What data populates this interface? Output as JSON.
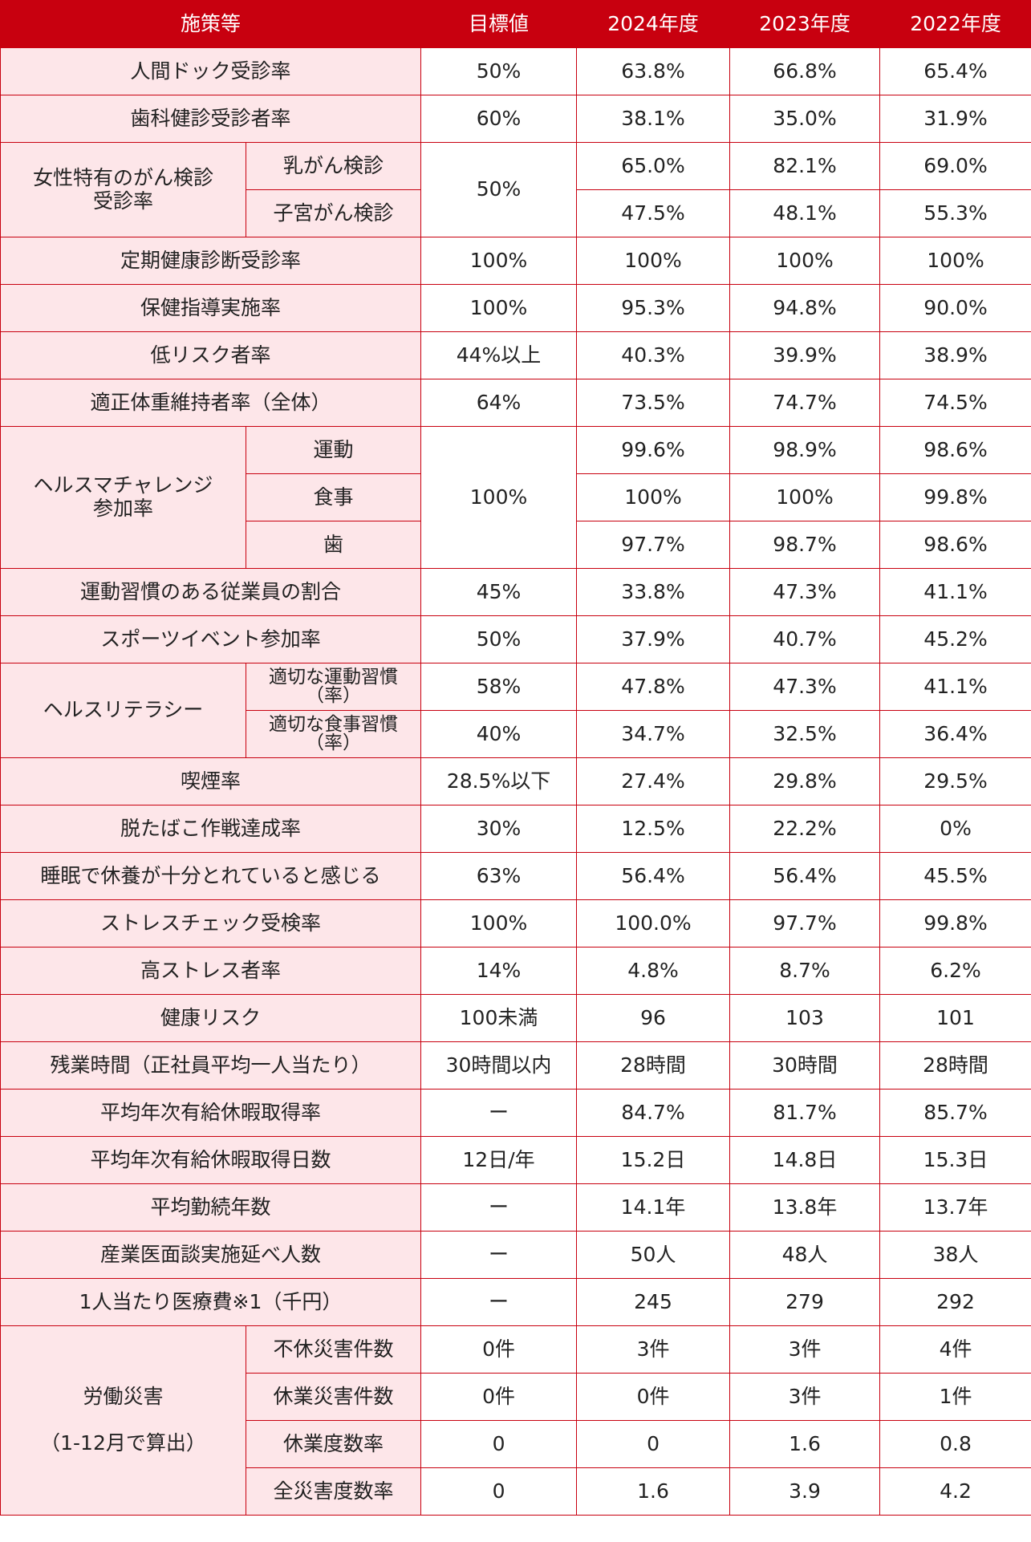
{
  "table": {
    "header": [
      "施策等",
      "目標値",
      "2024年度",
      "2023年度",
      "2022年度"
    ],
    "rows": [
      [
        "人間ドック受診率",
        "50%",
        "63.8%",
        "66.8%",
        "65.4%"
      ],
      [
        "歯科健診受診者率",
        "60%",
        "38.1%",
        "35.0%",
        "31.9%"
      ],
      [
        "女性特有のがん検診\n受診率",
        "乳がん検診",
        "50%",
        "65.0%",
        "82.1%",
        "69.0%"
      ],
      [
        "子宮がん検診",
        "47.5%",
        "48.1%",
        "55.3%"
      ],
      [
        "定期健康診断受診率",
        "100%",
        "100%",
        "100%",
        "100%"
      ],
      [
        "保健指導実施率",
        "100%",
        "95.3%",
        "94.8%",
        "90.0%"
      ],
      [
        "低リスク者率",
        "44%以上",
        "40.3%",
        "39.9%",
        "38.9%"
      ],
      [
        "適正体重維持者率（全体）",
        "64%",
        "73.5%",
        "74.7%",
        "74.5%"
      ],
      [
        "ヘルスマチャレンジ\n参加率",
        "運動",
        "100%",
        "99.6%",
        "98.9%",
        "98.6%"
      ],
      [
        "食事",
        "100%",
        "100%",
        "99.8%"
      ],
      [
        "歯",
        "97.7%",
        "98.7%",
        "98.6%"
      ],
      [
        "運動習慣のある従業員の割合",
        "45%",
        "33.8%",
        "47.3%",
        "41.1%"
      ],
      [
        "スポーツイベント参加率",
        "50%",
        "37.9%",
        "40.7%",
        "45.2%"
      ],
      [
        "ヘルスリテラシー",
        "適切な運動習慣（率）",
        "58%",
        "47.8%",
        "47.3%",
        "41.1%"
      ],
      [
        "適切な食事習慣（率）",
        "40%",
        "34.7%",
        "32.5%",
        "36.4%"
      ],
      [
        "喫煙率",
        "28.5%以下",
        "27.4%",
        "29.8%",
        "29.5%"
      ],
      [
        "脱たばこ作戦達成率",
        "30%",
        "12.5%",
        "22.2%",
        "0%"
      ],
      [
        "睡眠で休養が十分とれていると感じる",
        "63%",
        "56.4%",
        "56.4%",
        "45.5%"
      ],
      [
        "ストレスチェック受検率",
        "100%",
        "100.0%",
        "97.7%",
        "99.8%"
      ],
      [
        "高ストレス者率",
        "14%",
        "4.8%",
        "8.7%",
        "6.2%"
      ],
      [
        "健康リスク",
        "100未満",
        "96",
        "103",
        "101"
      ],
      [
        "残業時間（正社員平均一人当たり）",
        "30時間以内",
        "28時間",
        "30時間",
        "28時間"
      ],
      [
        "平均年次有給休暇取得率",
        "ー",
        "84.7%",
        "81.7%",
        "85.7%"
      ],
      [
        "平均年次有給休暇取得日数",
        "12日/年",
        "15.2日",
        "14.8日",
        "15.3日"
      ],
      [
        "平均勤続年数",
        "ー",
        "14.1年",
        "13.8年",
        "13.7年"
      ],
      [
        "産業医面談実施延べ人数",
        "ー",
        "50人",
        "48人",
        "38人"
      ],
      [
        "1人当たり医療費※1（千円）",
        "ー",
        "245",
        "279",
        "292"
      ],
      [
        "労働災害\n\n（1-12月で算出）",
        "不休災害件数",
        "0件",
        "3件",
        "3件",
        "4件"
      ],
      [
        "休業災害件数",
        "0件",
        "0件",
        "3件",
        "1件"
      ],
      [
        "休業度数率",
        "0",
        "0",
        "1.6",
        "0.8"
      ],
      [
        "全災害度数率",
        "0",
        "1.6",
        "3.9",
        "4.2"
      ]
    ]
  }
}
